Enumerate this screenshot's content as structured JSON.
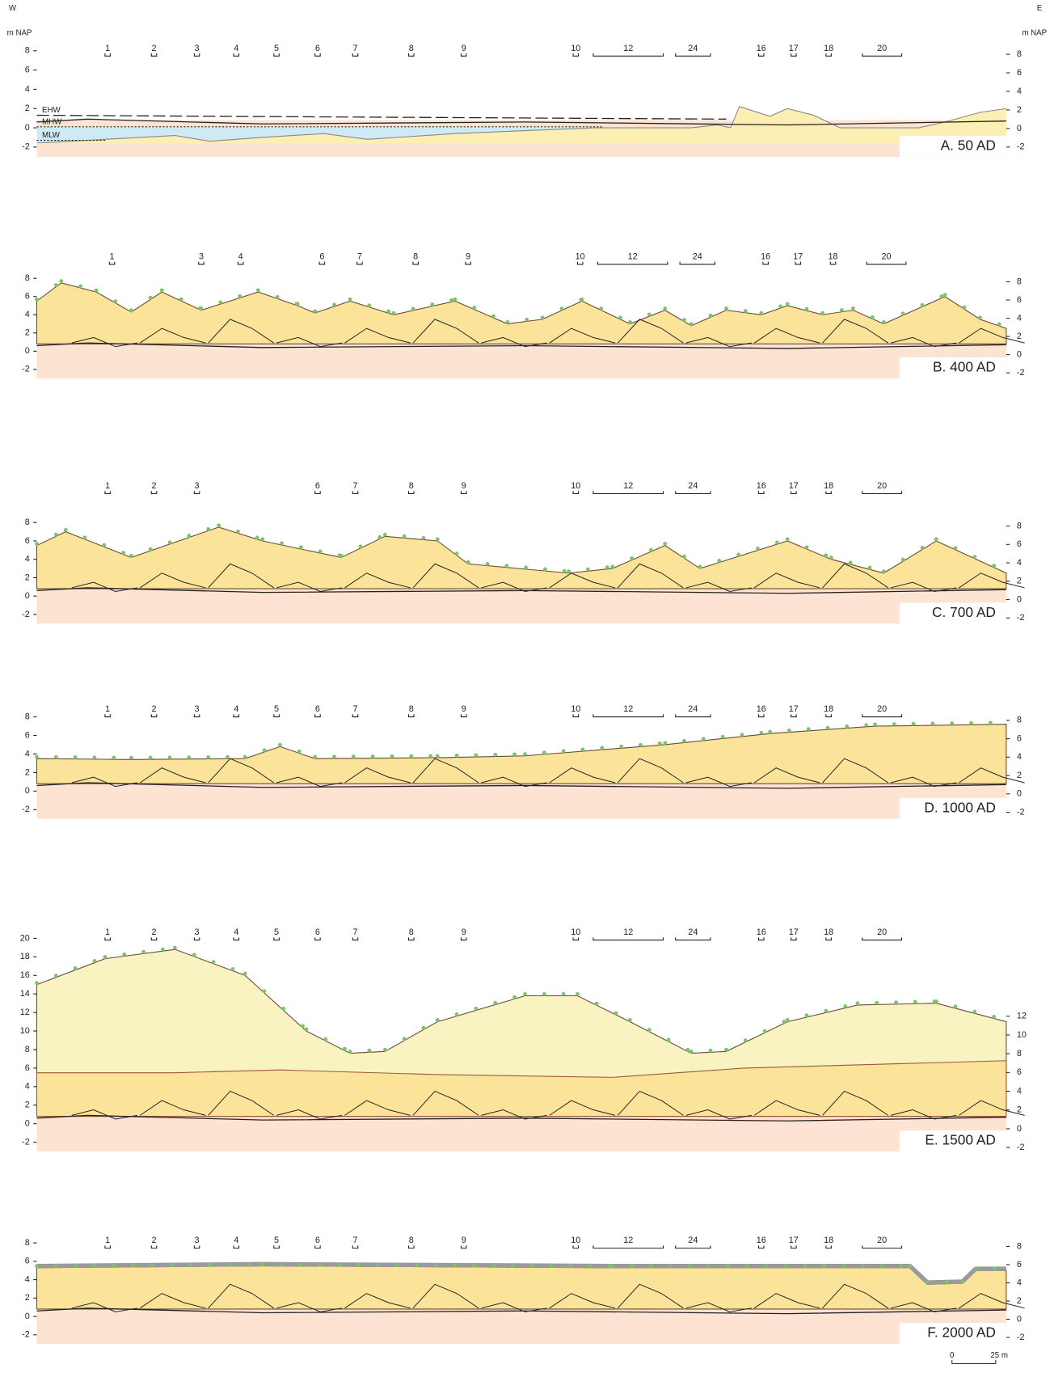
{
  "header": {
    "west": "W",
    "east": "E",
    "left_unit": "m NAP",
    "right_unit": "m NAP"
  },
  "panels": [
    {
      "label": "A. 50 AD",
      "left_ticks": [
        8,
        6,
        4,
        2,
        0,
        -2
      ],
      "right_ticks": [
        8,
        6,
        4,
        2,
        0,
        -2
      ],
      "sections": [
        "1",
        "2",
        "3",
        "4",
        "5",
        "6",
        "7",
        "8",
        "9",
        "10",
        "12",
        "24",
        "16",
        "17",
        "18",
        "20"
      ],
      "water_levels": [
        "EHW",
        "MHW",
        "MLW"
      ]
    },
    {
      "label": "B. 400 AD",
      "left_ticks": [
        8,
        6,
        4,
        2,
        0,
        -2
      ],
      "right_ticks": [
        8,
        6,
        4,
        2,
        0,
        -2
      ],
      "sections": [
        "1",
        "3",
        "4",
        "6",
        "7",
        "8",
        "9",
        "10",
        "12",
        "24",
        "16",
        "17",
        "18",
        "20"
      ]
    },
    {
      "label": "C. 700 AD",
      "left_ticks": [
        8,
        6,
        4,
        2,
        0,
        -2
      ],
      "right_ticks": [
        8,
        6,
        4,
        2,
        0,
        -2
      ],
      "sections": [
        "1",
        "2",
        "3",
        "6",
        "7",
        "8",
        "9",
        "10",
        "12",
        "24",
        "16",
        "17",
        "18",
        "20"
      ]
    },
    {
      "label": "D. 1000 AD",
      "left_ticks": [
        8,
        6,
        4,
        2,
        0,
        -2
      ],
      "right_ticks": [
        8,
        6,
        4,
        2,
        0,
        -2
      ],
      "sections": [
        "1",
        "2",
        "3",
        "4",
        "5",
        "6",
        "7",
        "8",
        "9",
        "10",
        "12",
        "24",
        "16",
        "17",
        "18",
        "20"
      ]
    },
    {
      "label": "E. 1500 AD",
      "left_ticks": [
        20,
        18,
        16,
        14,
        12,
        10,
        8,
        6,
        4,
        2,
        0,
        -2
      ],
      "right_ticks": [
        12,
        10,
        8,
        6,
        4,
        2,
        0,
        -2
      ],
      "sections": [
        "1",
        "2",
        "3",
        "4",
        "5",
        "6",
        "7",
        "8",
        "9",
        "10",
        "12",
        "24",
        "16",
        "17",
        "18",
        "20"
      ]
    },
    {
      "label": "F. 2000 AD",
      "left_ticks": [
        8,
        6,
        4,
        2,
        0,
        -2
      ],
      "right_ticks": [
        8,
        6,
        4,
        2,
        0,
        -2
      ],
      "sections": [
        "1",
        "2",
        "3",
        "4",
        "5",
        "6",
        "7",
        "8",
        "9",
        "10",
        "12",
        "24",
        "16",
        "17",
        "18",
        "20"
      ]
    }
  ],
  "scale_bar": {
    "start": "0",
    "end": "25 m"
  }
}
